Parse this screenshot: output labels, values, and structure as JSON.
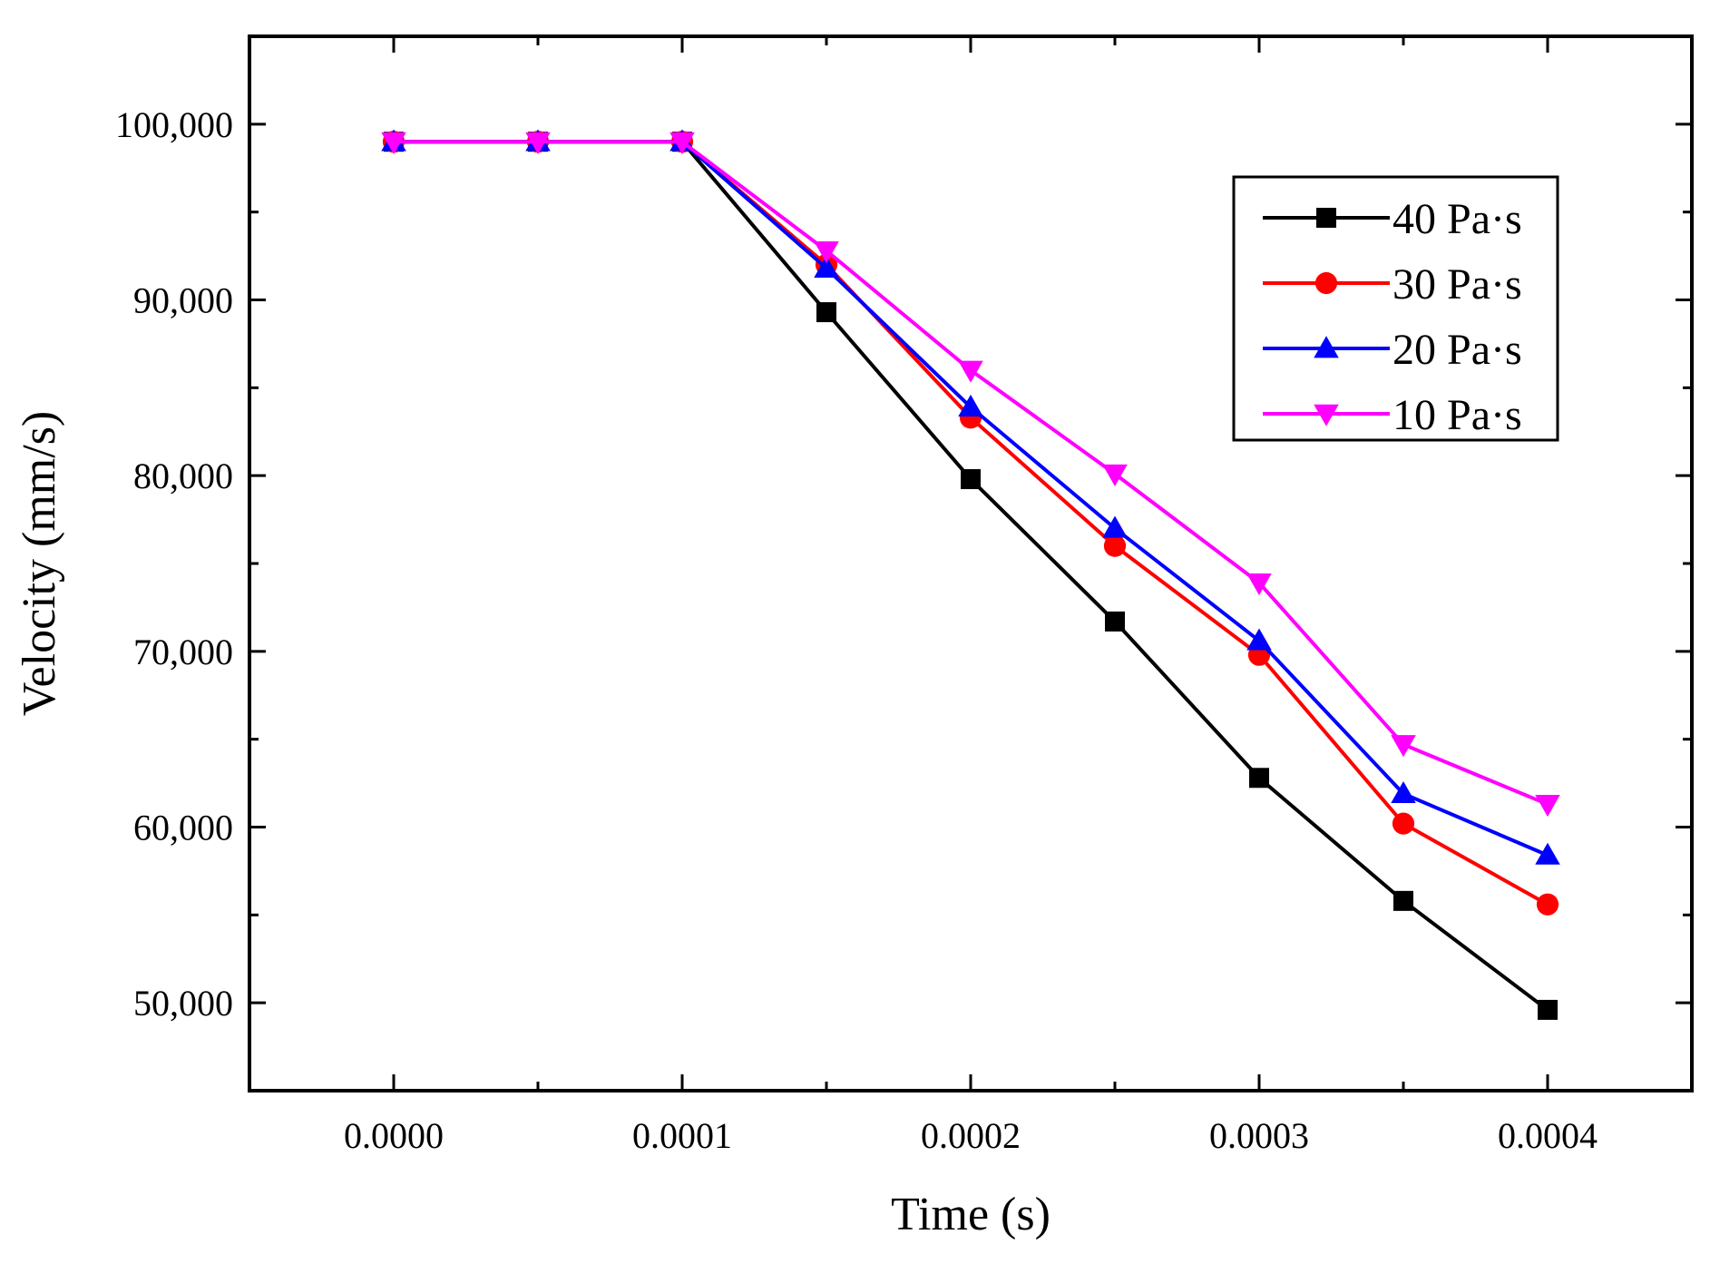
{
  "chart_data": {
    "type": "line",
    "title": "",
    "xlabel": "Time (s)",
    "ylabel": "Velocity (mm/s)",
    "xlim": [
      -5e-05,
      0.00045
    ],
    "ylim": [
      45000,
      105000
    ],
    "x_ticks": [
      0,
      0.0001,
      0.0002,
      0.0003,
      0.0004
    ],
    "x_tick_labels": [
      "0.0000",
      "0.0001",
      "0.0002",
      "0.0003",
      "0.0004"
    ],
    "x_minor_ticks": [
      5e-05,
      0.00015,
      0.00025,
      0.00035
    ],
    "y_ticks": [
      50000,
      60000,
      70000,
      80000,
      90000,
      100000
    ],
    "y_tick_labels": [
      "50,000",
      "60,000",
      "70,000",
      "80,000",
      "90,000",
      "100,000"
    ],
    "y_minor_ticks": [
      55000,
      65000,
      75000,
      85000,
      95000
    ],
    "grid": false,
    "legend_position": "top-right",
    "x": [
      0,
      5e-05,
      0.0001,
      0.00015,
      0.0002,
      0.00025,
      0.0003,
      0.00035,
      0.0004
    ],
    "series": [
      {
        "name": "40 Pa·s",
        "color": "#000000",
        "marker": "square",
        "values": [
          99000,
          99000,
          99000,
          89300,
          79800,
          71700,
          62800,
          55800,
          49600
        ]
      },
      {
        "name": "30 Pa·s",
        "color": "#ff0000",
        "marker": "circle",
        "values": [
          99000,
          99000,
          99000,
          92000,
          83300,
          76000,
          69800,
          60200,
          55600
        ]
      },
      {
        "name": "20 Pa·s",
        "color": "#0000ff",
        "marker": "triangle-up",
        "values": [
          99000,
          99000,
          99000,
          91800,
          83900,
          77000,
          70600,
          61900,
          58400
        ]
      },
      {
        "name": "10 Pa·s",
        "color": "#ff00ff",
        "marker": "triangle-down",
        "values": [
          99000,
          99000,
          99000,
          92800,
          86000,
          80100,
          73900,
          64700,
          61300
        ]
      }
    ]
  }
}
